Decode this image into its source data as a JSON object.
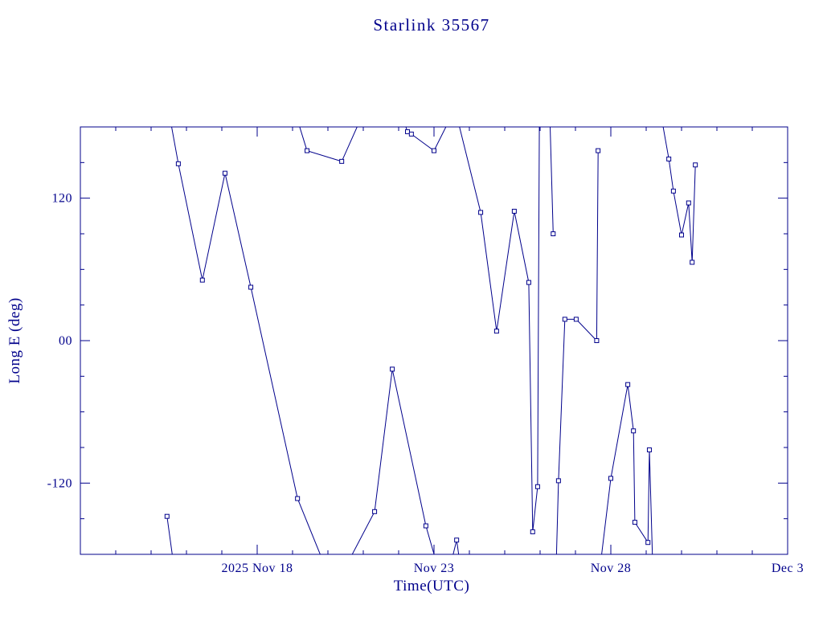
{
  "colors": {
    "ink": "#00008b",
    "background": "#ffffff"
  },
  "chart_data": {
    "type": "line",
    "title": "Starlink 35567",
    "xlabel": "Time(UTC)",
    "ylabel": "Long E (deg)",
    "x_unit": "days since 2025 Nov 13 00:00 UTC",
    "xlim": [
      0,
      20
    ],
    "ylim": [
      -180,
      180
    ],
    "grid": false,
    "legend": "none",
    "marker": "square",
    "marker_size": 5,
    "x_ticks": [
      {
        "day": 5,
        "label": "2025 Nov 18"
      },
      {
        "day": 10,
        "label": "Nov 23"
      },
      {
        "day": 15,
        "label": "Nov 28"
      },
      {
        "day": 20,
        "label": "Dec 3"
      }
    ],
    "x_minor_tick_step_days": 1,
    "y_ticks": [
      {
        "value": 120,
        "label": "120"
      },
      {
        "value": 0,
        "label": "00"
      },
      {
        "value": -120,
        "label": "-120"
      }
    ],
    "y_minor_tick_step": 30,
    "segments_note": "each point is [days_since_Nov13, longitude_deg, marker_flag]; |value|>180 points are synthetic lead-ins where the trace exits the frame (longitude wrap)",
    "segments": [
      [
        [
          2.55,
          185,
          0
        ],
        [
          2.77,
          149,
          1
        ],
        [
          3.45,
          51,
          1
        ],
        [
          4.09,
          141,
          1
        ],
        [
          4.82,
          45,
          1
        ],
        [
          6.14,
          -133,
          1
        ],
        [
          6.85,
          -185,
          0
        ]
      ],
      [
        [
          2.45,
          -148,
          1
        ],
        [
          2.62,
          -185,
          0
        ]
      ],
      [
        [
          6.15,
          185,
          0
        ],
        [
          6.41,
          160,
          1
        ],
        [
          7.39,
          151,
          1
        ],
        [
          7.9,
          185,
          0
        ]
      ],
      [
        [
          7.6,
          -185,
          0
        ],
        [
          8.32,
          -144,
          1
        ],
        [
          8.82,
          -24,
          1
        ],
        [
          9.77,
          -156,
          1
        ],
        [
          10.05,
          -185,
          0
        ]
      ],
      [
        [
          9.15,
          185,
          0
        ],
        [
          9.25,
          176,
          1
        ],
        [
          9.36,
          174,
          1
        ],
        [
          10.0,
          160,
          1
        ],
        [
          10.42,
          185,
          0
        ]
      ],
      [
        [
          10.5,
          -185,
          0
        ],
        [
          10.64,
          -168,
          1
        ],
        [
          10.72,
          -185,
          0
        ]
      ],
      [
        [
          10.68,
          185,
          0
        ],
        [
          11.32,
          108,
          1
        ],
        [
          11.77,
          8,
          1
        ],
        [
          12.27,
          109,
          1
        ],
        [
          12.68,
          49,
          1
        ],
        [
          12.79,
          -161,
          1
        ],
        [
          12.93,
          -123,
          1
        ],
        [
          12.98,
          185,
          0
        ]
      ],
      [
        [
          13.28,
          185,
          0
        ],
        [
          13.37,
          90,
          1
        ]
      ],
      [
        [
          13.46,
          -185,
          0
        ],
        [
          13.52,
          -118,
          1
        ],
        [
          13.7,
          18,
          1
        ],
        [
          14.02,
          18,
          1
        ],
        [
          14.6,
          0,
          1
        ],
        [
          14.64,
          160,
          1
        ]
      ],
      [
        [
          14.72,
          -185,
          0
        ],
        [
          15.0,
          -116,
          1
        ],
        [
          15.48,
          -37,
          1
        ],
        [
          15.64,
          -76,
          1
        ],
        [
          15.68,
          -153,
          1
        ],
        [
          16.05,
          -170,
          1
        ],
        [
          16.09,
          -92,
          1
        ],
        [
          16.18,
          -185,
          0
        ]
      ],
      [
        [
          16.45,
          185,
          0
        ],
        [
          16.64,
          153,
          1
        ],
        [
          16.77,
          126,
          1
        ],
        [
          17.0,
          89,
          1
        ],
        [
          17.2,
          116,
          1
        ],
        [
          17.3,
          66,
          1
        ],
        [
          17.39,
          148,
          1
        ]
      ]
    ]
  }
}
